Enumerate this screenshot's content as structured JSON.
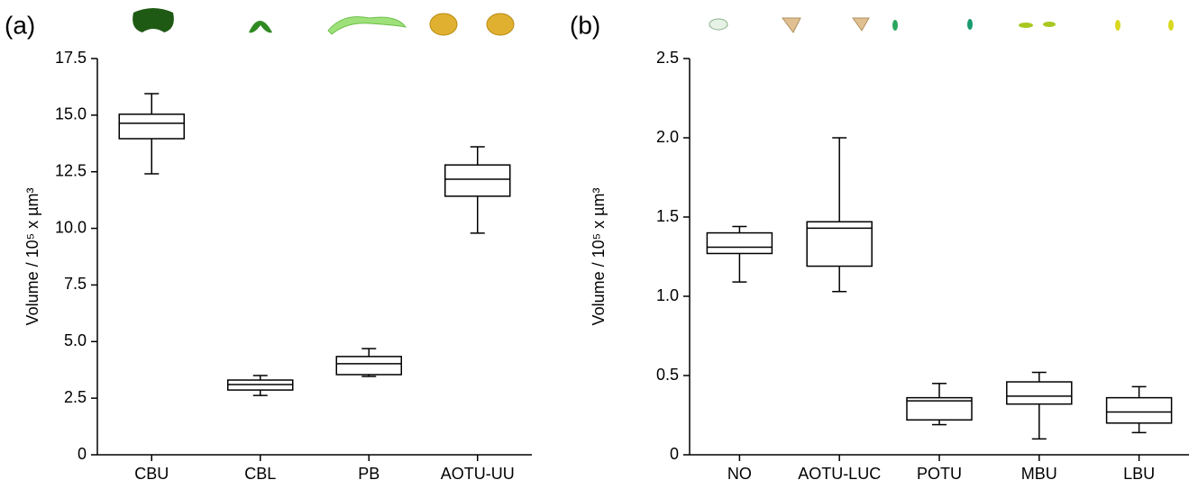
{
  "chart_data": [
    {
      "type": "box",
      "panel_label": "(a)",
      "y_label": "Volume / 10⁵ x µm³",
      "categories": [
        "CBU",
        "CBL",
        "PB",
        "AOTU-UU"
      ],
      "min": [
        12.41,
        2.62,
        3.46,
        9.79
      ],
      "q1": [
        13.96,
        2.86,
        3.54,
        11.42
      ],
      "median": [
        14.64,
        3.1,
        4.02,
        12.17
      ],
      "q3": [
        15.04,
        3.3,
        4.34,
        12.8
      ],
      "max": [
        15.95,
        3.5,
        4.69,
        13.6
      ],
      "color": "#000000",
      "fill": "#ffffff",
      "ylim": [
        0,
        17.5
      ],
      "yticks": [
        0,
        2.5,
        {
          "value": 5,
          "label": "5.0"
        },
        7.5,
        {
          "value": 10,
          "label": "10.0"
        },
        12.5,
        {
          "value": 15,
          "label": "15.0"
        },
        17.5
      ]
    },
    {
      "type": "box",
      "panel_label": "(b)",
      "y_label": "Volume / 10⁵ x µm³",
      "categories": [
        "NO",
        "AOTU-LUC",
        "POTU",
        "MBU",
        "LBU"
      ],
      "min": [
        1.09,
        1.03,
        0.19,
        0.1,
        0.14
      ],
      "q1": [
        1.27,
        1.19,
        0.22,
        0.32,
        0.2
      ],
      "median": [
        1.31,
        1.43,
        0.34,
        0.37,
        0.27
      ],
      "q3": [
        1.4,
        1.47,
        0.36,
        0.46,
        0.36
      ],
      "max": [
        1.44,
        2.0,
        0.45,
        0.52,
        0.43
      ],
      "color": "#000000",
      "fill": "#ffffff",
      "ylim": [
        0,
        2.5
      ],
      "yticks": [
        0,
        0.5,
        {
          "value": 1,
          "label": "1.0"
        },
        1.5,
        {
          "value": 2,
          "label": "2.0"
        },
        2.5
      ]
    }
  ]
}
